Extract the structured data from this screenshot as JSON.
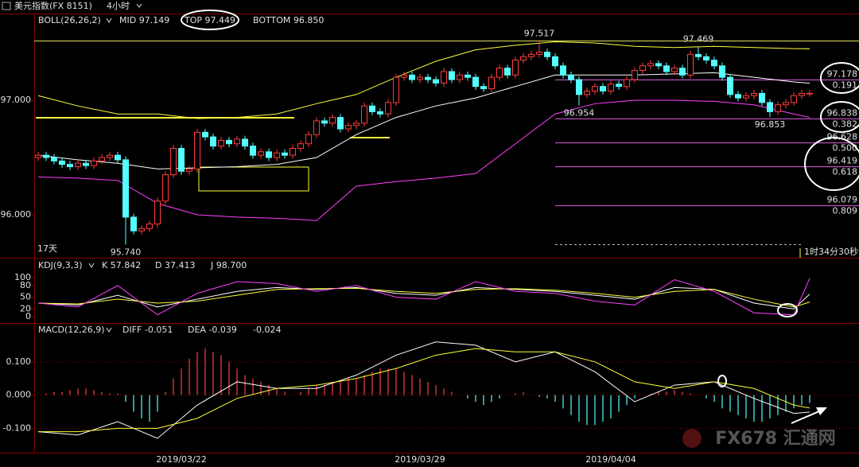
{
  "window": {
    "title": "美元指数(FX 8151)",
    "period": "4小时"
  },
  "watermark": "FX678 汇通网",
  "chart_data": [
    {
      "type": "candlestick",
      "title": "BOLL(26,26,2)",
      "up_color": "#ff3c3c",
      "down_color": "#54ffff",
      "xlim": [
        -0.5,
        103.2
      ],
      "ylim": [
        95.653,
        97.597
      ],
      "yticks": [
        {
          "value": 96,
          "label": "96.000"
        },
        {
          "value": 97,
          "label": "97.000"
        }
      ],
      "candles": [
        [
          96.5,
          96.55,
          96.47,
          96.52
        ],
        [
          96.52,
          96.55,
          96.47,
          96.5
        ],
        [
          96.5,
          96.53,
          96.44,
          96.47
        ],
        [
          96.47,
          96.5,
          96.41,
          96.44
        ],
        [
          96.44,
          96.47,
          96.39,
          96.42
        ],
        [
          96.42,
          96.48,
          96.39,
          96.45
        ],
        [
          96.45,
          96.48,
          96.4,
          96.43
        ],
        [
          96.43,
          96.5,
          96.4,
          96.47
        ],
        [
          96.47,
          96.53,
          96.44,
          96.5
        ],
        [
          96.5,
          96.55,
          96.47,
          96.52
        ],
        [
          96.52,
          96.55,
          96.45,
          96.48
        ],
        [
          96.48,
          96.51,
          95.74,
          95.98
        ],
        [
          95.98,
          96.01,
          95.83,
          95.86
        ],
        [
          95.86,
          95.91,
          95.83,
          95.88
        ],
        [
          95.88,
          95.95,
          95.85,
          95.92
        ],
        [
          95.92,
          96.15,
          95.89,
          96.12
        ],
        [
          96.12,
          96.38,
          96.09,
          96.35
        ],
        [
          96.35,
          96.61,
          96.32,
          96.58
        ],
        [
          96.58,
          96.61,
          96.35,
          96.38
        ],
        [
          96.38,
          96.43,
          96.35,
          96.4
        ],
        [
          96.4,
          96.75,
          96.37,
          96.72
        ],
        [
          96.72,
          96.75,
          96.65,
          96.68
        ],
        [
          96.68,
          96.71,
          96.57,
          96.6
        ],
        [
          96.6,
          96.68,
          96.57,
          96.65
        ],
        [
          96.65,
          96.68,
          96.59,
          96.62
        ],
        [
          96.62,
          96.69,
          96.59,
          96.66
        ],
        [
          96.66,
          96.69,
          96.57,
          96.6
        ],
        [
          96.6,
          96.63,
          96.49,
          96.52
        ],
        [
          96.52,
          96.58,
          96.49,
          96.55
        ],
        [
          96.55,
          96.58,
          96.47,
          96.5
        ],
        [
          96.5,
          96.57,
          96.47,
          96.54
        ],
        [
          96.54,
          96.57,
          96.49,
          96.52
        ],
        [
          96.52,
          96.61,
          96.49,
          96.58
        ],
        [
          96.58,
          96.65,
          96.55,
          96.62
        ],
        [
          96.62,
          96.73,
          96.59,
          96.7
        ],
        [
          96.7,
          96.85,
          96.67,
          96.82
        ],
        [
          96.82,
          96.85,
          96.77,
          96.8
        ],
        [
          96.8,
          96.88,
          96.77,
          96.85
        ],
        [
          96.85,
          96.88,
          96.72,
          96.75
        ],
        [
          96.75,
          96.81,
          96.72,
          96.78
        ],
        [
          96.78,
          96.83,
          96.75,
          96.8
        ],
        [
          96.8,
          96.98,
          96.77,
          96.95
        ],
        [
          96.95,
          96.98,
          96.87,
          96.9
        ],
        [
          96.9,
          96.93,
          96.85,
          96.88
        ],
        [
          96.88,
          97.01,
          96.85,
          96.98
        ],
        [
          96.98,
          97.23,
          96.95,
          97.2
        ],
        [
          97.2,
          97.25,
          97.17,
          97.22
        ],
        [
          97.22,
          97.25,
          97.15,
          97.18
        ],
        [
          97.18,
          97.23,
          97.15,
          97.2
        ],
        [
          97.2,
          97.23,
          97.15,
          97.18
        ],
        [
          97.18,
          97.21,
          97.12,
          97.15
        ],
        [
          97.15,
          97.28,
          97.12,
          97.25
        ],
        [
          97.25,
          97.28,
          97.15,
          97.18
        ],
        [
          97.18,
          97.25,
          97.15,
          97.22
        ],
        [
          97.22,
          97.25,
          97.17,
          97.2
        ],
        [
          97.2,
          97.23,
          97.09,
          97.12
        ],
        [
          97.12,
          97.15,
          97.07,
          97.1
        ],
        [
          97.1,
          97.23,
          97.07,
          97.2
        ],
        [
          97.2,
          97.31,
          97.17,
          97.28
        ],
        [
          97.28,
          97.31,
          97.19,
          97.22
        ],
        [
          97.22,
          97.38,
          97.19,
          97.35
        ],
        [
          97.35,
          97.41,
          97.32,
          97.38
        ],
        [
          97.38,
          97.43,
          97.35,
          97.4
        ],
        [
          97.4,
          97.517,
          97.37,
          97.42
        ],
        [
          97.42,
          97.45,
          97.35,
          97.38
        ],
        [
          97.38,
          97.41,
          97.27,
          97.3
        ],
        [
          97.3,
          97.33,
          97.19,
          97.22
        ],
        [
          97.22,
          97.25,
          97.15,
          97.18
        ],
        [
          97.18,
          97.21,
          96.954,
          97.05
        ],
        [
          97.05,
          97.11,
          97.02,
          97.08
        ],
        [
          97.08,
          97.15,
          97.05,
          97.12
        ],
        [
          97.12,
          97.15,
          97.05,
          97.08
        ],
        [
          97.08,
          97.17,
          97.05,
          97.14
        ],
        [
          97.14,
          97.17,
          97.09,
          97.12
        ],
        [
          97.12,
          97.21,
          97.09,
          97.18
        ],
        [
          97.18,
          97.29,
          97.15,
          97.26
        ],
        [
          97.26,
          97.33,
          97.23,
          97.3
        ],
        [
          97.3,
          97.35,
          97.27,
          97.32
        ],
        [
          97.32,
          97.35,
          97.27,
          97.3
        ],
        [
          97.3,
          97.33,
          97.22,
          97.25
        ],
        [
          97.25,
          97.31,
          97.22,
          97.28
        ],
        [
          97.28,
          97.31,
          97.19,
          97.22
        ],
        [
          97.22,
          97.43,
          97.19,
          97.4
        ],
        [
          97.4,
          97.469,
          97.35,
          97.38
        ],
        [
          97.38,
          97.41,
          97.32,
          97.35
        ],
        [
          97.35,
          97.38,
          97.27,
          97.3
        ],
        [
          97.3,
          97.33,
          97.17,
          97.2
        ],
        [
          97.2,
          97.23,
          97.02,
          97.05
        ],
        [
          97.05,
          97.08,
          96.99,
          97.02
        ],
        [
          97.02,
          97.07,
          96.99,
          97.04
        ],
        [
          97.04,
          97.09,
          97.01,
          97.06
        ],
        [
          97.06,
          97.09,
          96.95,
          96.98
        ],
        [
          96.98,
          97.01,
          96.853,
          96.9
        ],
        [
          96.9,
          96.99,
          96.87,
          96.96
        ],
        [
          96.96,
          97.01,
          96.93,
          96.98
        ],
        [
          96.98,
          97.07,
          96.95,
          97.04
        ],
        [
          97.04,
          97.09,
          97.01,
          97.06
        ],
        [
          97.06,
          97.09,
          97.03,
          97.06
        ]
      ],
      "x": [
        0,
        5,
        10,
        15,
        20,
        25,
        30,
        35,
        40,
        45,
        50,
        55,
        60,
        65,
        70,
        75,
        80,
        85,
        90,
        95,
        97
      ],
      "series": [
        {
          "name": "MID 97.149",
          "color": "#ffffff",
          "values": [
            96.52,
            96.48,
            96.45,
            96.4,
            96.41,
            96.42,
            96.44,
            96.5,
            96.7,
            96.85,
            96.95,
            97.02,
            97.12,
            97.22,
            97.22,
            97.22,
            97.23,
            97.24,
            97.2,
            97.16,
            97.149
          ]
        },
        {
          "name": "TOP 97.449",
          "color": "#ffff3c",
          "values": [
            97.04,
            96.95,
            96.88,
            96.88,
            96.84,
            96.85,
            96.88,
            96.97,
            97.05,
            97.2,
            97.34,
            97.44,
            97.48,
            97.51,
            97.5,
            97.47,
            97.46,
            97.47,
            97.46,
            97.45,
            97.449
          ]
        },
        {
          "name": "BOTTOM 96.850",
          "color": "#ff40ff",
          "values": [
            96.33,
            96.32,
            96.3,
            96.1,
            96.0,
            95.98,
            95.97,
            95.95,
            96.25,
            96.29,
            96.32,
            96.36,
            96.62,
            96.88,
            96.97,
            97.0,
            97.0,
            96.99,
            96.96,
            96.88,
            96.85
          ]
        }
      ],
      "price_labels": [
        {
          "value": 97.517,
          "label": "97.517"
        },
        {
          "value": 97.469,
          "label": "97.469"
        },
        {
          "value": 96.954,
          "label": "96.954"
        },
        {
          "value": 96.853,
          "label": "96.853"
        },
        {
          "value": 95.74,
          "label": "95.740"
        }
      ],
      "fib_levels": [
        {
          "value": 97.178,
          "label": "97.178",
          "ratio": "0.191"
        },
        {
          "value": 96.838,
          "label": "96.838",
          "ratio": "0.382"
        },
        {
          "value": 96.628,
          "label": "96.628",
          "ratio": "0.500"
        },
        {
          "value": 96.419,
          "label": "96.419",
          "ratio": "0.618"
        },
        {
          "value": 96.079,
          "label": "96.079",
          "ratio": "0.809"
        }
      ],
      "period_label": "17天",
      "countdown": "1时34分30秒"
    },
    {
      "type": "line",
      "title": "KDJ(9,3,3)",
      "xlim": [
        -0.5,
        103.2
      ],
      "ylim": [
        -14,
        143
      ],
      "yticks": [
        0,
        20,
        50,
        80,
        100
      ],
      "x": [
        0,
        5,
        10,
        15,
        20,
        25,
        30,
        35,
        40,
        45,
        50,
        55,
        60,
        65,
        70,
        75,
        80,
        85,
        90,
        95,
        97
      ],
      "series": [
        {
          "name": "K 57.842",
          "color": "#ffffff",
          "values": [
            35,
            30,
            55,
            25,
            45,
            65,
            75,
            70,
            75,
            60,
            55,
            75,
            70,
            65,
            55,
            45,
            75,
            70,
            35,
            20,
            57.842
          ]
        },
        {
          "name": "D 37.413",
          "color": "#ffff3c",
          "values": [
            35,
            33,
            45,
            35,
            40,
            55,
            70,
            72,
            73,
            65,
            60,
            70,
            72,
            68,
            60,
            50,
            65,
            70,
            45,
            25,
            37.413
          ]
        },
        {
          "name": "J 98.700",
          "color": "#ff40ff",
          "values": [
            35,
            25,
            80,
            5,
            60,
            90,
            85,
            65,
            80,
            50,
            45,
            90,
            65,
            60,
            40,
            30,
            95,
            65,
            10,
            5,
            98.7
          ]
        }
      ]
    },
    {
      "type": "macd",
      "title": "MACD(12,26,9)",
      "xlim": [
        -0.5,
        103.2
      ],
      "ylim": [
        -0.166,
        0.212
      ],
      "yticks": [
        {
          "value": 0.1,
          "label": "0.100"
        },
        {
          "value": 0,
          "label": "0.000"
        },
        {
          "value": -0.1,
          "label": "-0.100"
        }
      ],
      "grid": true,
      "pos_color": "#ff3c3c",
      "neg_color": "#54ffff",
      "xticks": [
        {
          "value": 18,
          "label": "2019/03/22"
        },
        {
          "value": 48,
          "label": "2019/03/29"
        },
        {
          "value": 72,
          "label": "2019/04/04"
        }
      ],
      "histogram": {
        "name": "-0.024",
        "color": "#ffffff",
        "values": [
          0,
          0.005,
          0.01,
          0.01,
          0.015,
          0.02,
          0.02,
          0.015,
          0.01,
          0.005,
          0.005,
          -0.02,
          -0.05,
          -0.07,
          -0.08,
          -0.05,
          0.01,
          0.05,
          0.08,
          0.11,
          0.13,
          0.14,
          0.13,
          0.12,
          0.1,
          0.08,
          0.06,
          0.05,
          0.04,
          0.03,
          0.02,
          0.01,
          0,
          0.01,
          0.02,
          0.03,
          0.03,
          0.04,
          0.04,
          0.05,
          0.05,
          0.06,
          0.07,
          0.08,
          0.08,
          0.08,
          0.07,
          0.06,
          0.05,
          0.04,
          0.03,
          0.02,
          0.01,
          0,
          -0.01,
          -0.02,
          -0.03,
          -0.02,
          -0.01,
          0,
          0.005,
          0.01,
          0,
          -0.005,
          -0.01,
          -0.02,
          -0.04,
          -0.06,
          -0.08,
          -0.09,
          -0.09,
          -0.08,
          -0.07,
          -0.05,
          -0.03,
          -0.01,
          0,
          0.005,
          0.01,
          0.01,
          0.015,
          0.01,
          0.005,
          0,
          -0.01,
          -0.02,
          -0.04,
          -0.05,
          -0.06,
          -0.07,
          -0.08,
          -0.08,
          -0.07,
          -0.06,
          -0.05,
          -0.04,
          -0.03,
          -0.024
        ]
      },
      "x": [
        0,
        5,
        10,
        15,
        20,
        25,
        30,
        35,
        40,
        45,
        50,
        55,
        60,
        65,
        70,
        75,
        80,
        85,
        90,
        95,
        97
      ],
      "series": [
        {
          "name": "DIFF -0.051",
          "color": "#ffffff",
          "values": [
            -0.11,
            -0.12,
            -0.08,
            -0.13,
            -0.03,
            0.04,
            0.02,
            0.02,
            0.06,
            0.12,
            0.16,
            0.15,
            0.1,
            0.13,
            0.07,
            -0.02,
            0.03,
            0.04,
            -0.01,
            -0.055,
            -0.051
          ]
        },
        {
          "name": "DEA -0.039",
          "color": "#ffff3c",
          "values": [
            -0.11,
            -0.11,
            -0.1,
            -0.1,
            -0.07,
            -0.01,
            0.02,
            0.03,
            0.05,
            0.08,
            0.12,
            0.14,
            0.13,
            0.13,
            0.1,
            0.04,
            0.02,
            0.04,
            0.02,
            -0.03,
            -0.039
          ]
        }
      ]
    }
  ]
}
